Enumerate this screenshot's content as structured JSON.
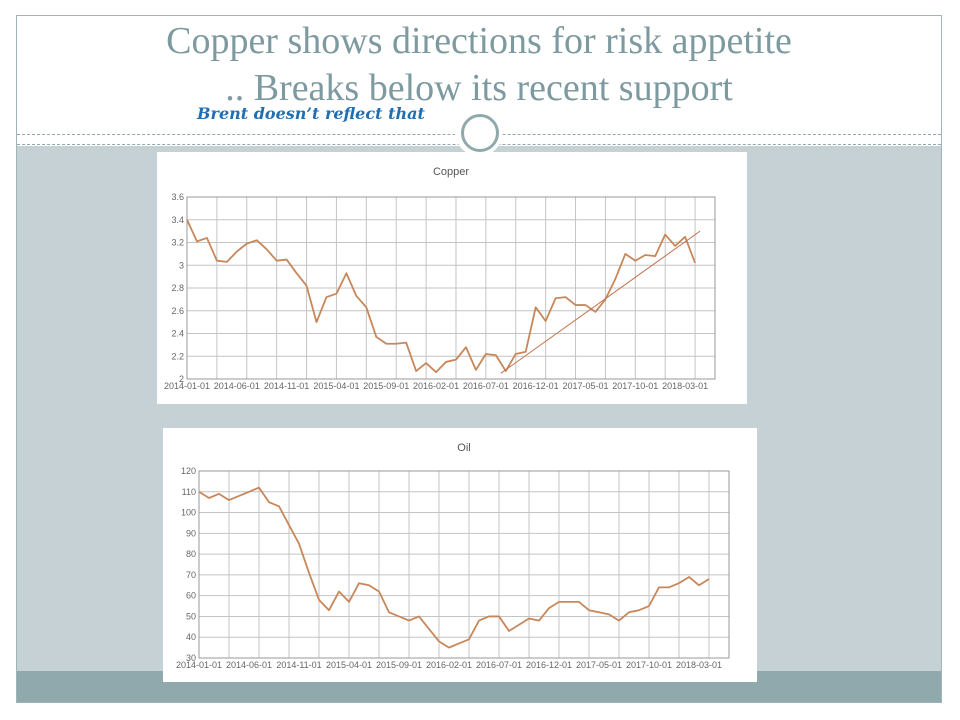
{
  "slide": {
    "title_line1": "Copper shows directions for risk appetite",
    "title_line2": ".. Breaks below its recent support",
    "subtitle": "Brent  doesn’t reflect that"
  },
  "colors": {
    "series": "#c8875a",
    "trendline": "#c0704a",
    "title_text": "#7d9aa0",
    "subtitle_text": "#1f6fb3",
    "content_band": "#c6d1d6",
    "footer_band": "#8fa9ad"
  },
  "chart_data": [
    {
      "type": "line",
      "title": "Copper",
      "xlabel": "",
      "ylabel": "",
      "grid": true,
      "x_ticks": [
        "2014-01-01",
        "2014-06-01",
        "2014-11-01",
        "2015-04-01",
        "2015-09-01",
        "2016-02-01",
        "2016-07-01",
        "2016-12-01",
        "2017-05-01",
        "2017-10-01",
        "2018-03-01"
      ],
      "y_ticks": [
        "2",
        "2.2",
        "2.4",
        "2.6",
        "2.8",
        "3",
        "3.2",
        "3.4",
        "3.6"
      ],
      "xlim_months": [
        0,
        53
      ],
      "ylim": [
        2,
        3.6
      ],
      "x_start": "2014-01-01",
      "x": [
        0,
        1,
        2,
        3,
        4,
        5,
        6,
        7,
        8,
        9,
        10,
        11,
        12,
        13,
        14,
        15,
        16,
        17,
        18,
        19,
        20,
        21,
        22,
        23,
        24,
        25,
        26,
        27,
        28,
        29,
        30,
        31,
        32,
        33,
        34,
        35,
        36,
        37,
        38,
        39,
        40,
        41,
        42,
        43,
        44,
        45,
        46,
        47,
        48,
        49,
        50,
        51
      ],
      "series": [
        {
          "name": "",
          "values": [
            3.4,
            3.21,
            3.24,
            3.04,
            3.03,
            3.12,
            3.19,
            3.22,
            3.14,
            3.04,
            3.05,
            2.93,
            2.82,
            2.5,
            2.72,
            2.75,
            2.93,
            2.73,
            2.63,
            2.37,
            2.31,
            2.31,
            2.32,
            2.07,
            2.14,
            2.06,
            2.15,
            2.17,
            2.28,
            2.08,
            2.22,
            2.21,
            2.07,
            2.22,
            2.24,
            2.63,
            2.51,
            2.71,
            2.72,
            2.65,
            2.65,
            2.59,
            2.7,
            2.88,
            3.1,
            3.04,
            3.09,
            3.08,
            3.27,
            3.17,
            3.25,
            3.02
          ]
        }
      ],
      "trendline": {
        "from": [
          31.5,
          2.05
        ],
        "to": [
          51.5,
          3.3
        ]
      }
    },
    {
      "type": "line",
      "title": "Oil",
      "xlabel": "",
      "ylabel": "",
      "grid": true,
      "x_ticks": [
        "2014-01-01",
        "2014-06-01",
        "2014-11-01",
        "2015-04-01",
        "2015-09-01",
        "2016-02-01",
        "2016-07-01",
        "2016-12-01",
        "2017-05-01",
        "2017-10-01",
        "2018-03-01"
      ],
      "y_ticks": [
        "30",
        "40",
        "50",
        "60",
        "70",
        "80",
        "90",
        "100",
        "110",
        "120"
      ],
      "xlim_months": [
        0,
        53
      ],
      "ylim": [
        30,
        120
      ],
      "x_start": "2014-01-01",
      "x": [
        0,
        1,
        2,
        3,
        4,
        5,
        6,
        7,
        8,
        9,
        10,
        11,
        12,
        13,
        14,
        15,
        16,
        17,
        18,
        19,
        20,
        21,
        22,
        23,
        24,
        25,
        26,
        27,
        28,
        29,
        30,
        31,
        32,
        33,
        34,
        35,
        36,
        37,
        38,
        39,
        40,
        41,
        42,
        43,
        44,
        45,
        46,
        47,
        48,
        49,
        50,
        51
      ],
      "series": [
        {
          "name": "",
          "values": [
            110,
            107,
            109,
            106,
            108,
            110,
            112,
            105,
            103,
            94,
            85,
            71,
            58,
            53,
            62,
            57,
            66,
            65,
            62,
            52,
            50,
            48,
            50,
            44,
            38,
            35,
            37,
            39,
            48,
            50,
            50,
            43,
            46,
            49,
            48,
            54,
            57,
            57,
            57,
            53,
            52,
            51,
            48,
            52,
            53,
            55,
            64,
            64,
            66,
            69,
            65,
            68
          ]
        }
      ]
    }
  ]
}
